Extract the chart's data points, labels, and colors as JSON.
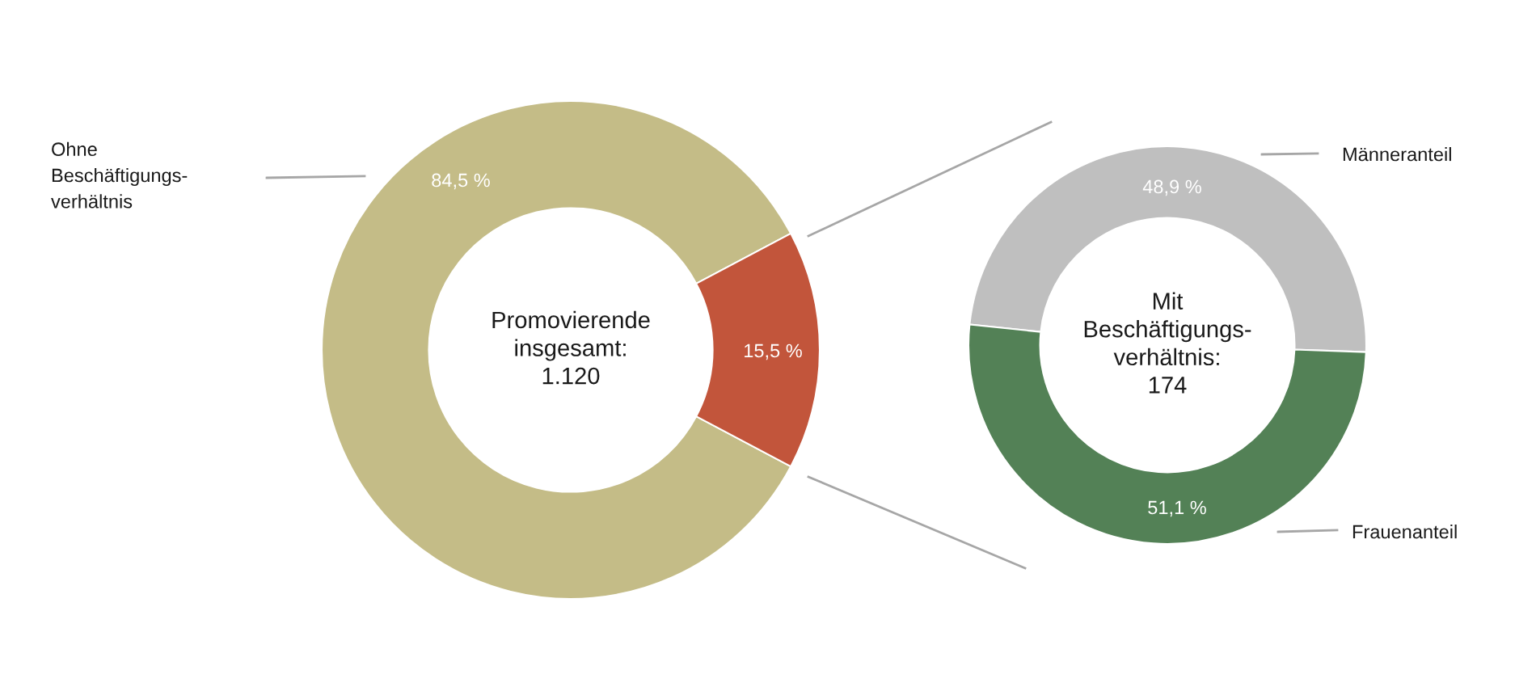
{
  "chart_data": [
    {
      "type": "donut",
      "categories": [
        "Ohne\nBeschäftigungs-\nverhältnis",
        null
      ],
      "values": [
        84.5,
        15.5
      ],
      "colors": [
        "#c4bc87",
        "#c2553b"
      ],
      "value_labels": [
        "84,5 %",
        "15,5 %"
      ],
      "annotations": [
        "Promovierende\ninsgesamt:\n1.120"
      ]
    },
    {
      "type": "donut",
      "categories": [
        "Männeranteil",
        "Frauenanteil"
      ],
      "values": [
        48.9,
        51.1
      ],
      "colors": [
        "#bfbfbf",
        "#538156"
      ],
      "value_labels": [
        "48,9 %",
        "51,1 %"
      ],
      "annotations": [
        "Mit\nBeschäftigungs-\nverhältnis:\n174"
      ]
    }
  ]
}
